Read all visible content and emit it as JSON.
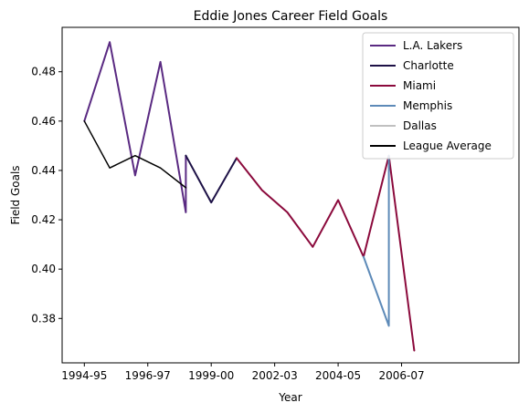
{
  "chart_data": {
    "type": "line",
    "title": "Eddie Jones  Career Field Goals",
    "xlabel": "Year",
    "ylabel": "Field Goals",
    "xlim": [
      -0.7,
      13.7
    ],
    "ylim": [
      0.362,
      0.498
    ],
    "x_ticks": [
      {
        "pos": 0,
        "label": "1994-95"
      },
      {
        "pos": 2,
        "label": "1996-97"
      },
      {
        "pos": 4,
        "label": "1999-00"
      },
      {
        "pos": 6,
        "label": "2002-03"
      },
      {
        "pos": 8,
        "label": "2004-05"
      },
      {
        "pos": 10,
        "label": "2006-07"
      }
    ],
    "y_ticks": [
      {
        "value": 0.38,
        "label": "0.38"
      },
      {
        "value": 0.4,
        "label": "0.40"
      },
      {
        "value": 0.42,
        "label": "0.42"
      },
      {
        "value": 0.44,
        "label": "0.44"
      },
      {
        "value": 0.46,
        "label": "0.46"
      },
      {
        "value": 0.48,
        "label": "0.48"
      }
    ],
    "legend_position": "top-right",
    "grid": false,
    "series": [
      {
        "name": "L.A. Lakers",
        "color": "#5a2a82",
        "points": [
          [
            0,
            0.46
          ],
          [
            0.8,
            0.492
          ],
          [
            1.6,
            0.438
          ],
          [
            2.4,
            0.484
          ],
          [
            3.2,
            0.423
          ],
          [
            3.2,
            0.446
          ]
        ]
      },
      {
        "name": "Charlotte",
        "color": "#1d1146",
        "points": [
          [
            3.2,
            0.446
          ],
          [
            4,
            0.427
          ],
          [
            4.8,
            0.445
          ]
        ]
      },
      {
        "name": "Miami",
        "color": "#8b0a3c",
        "points": [
          [
            4.8,
            0.445
          ],
          [
            5.6,
            0.432
          ],
          [
            6.4,
            0.423
          ],
          [
            7.2,
            0.409
          ],
          [
            8,
            0.428
          ],
          [
            8.8,
            0.405
          ],
          [
            9.6,
            0.446
          ],
          [
            10.4,
            0.367
          ]
        ]
      },
      {
        "name": "Memphis",
        "color": "#5d8ab8",
        "points": [
          [
            8.8,
            0.405
          ],
          [
            9.6,
            0.377
          ],
          [
            9.6,
            0.446
          ]
        ]
      },
      {
        "name": "Dallas",
        "color": "#c0c0c0",
        "points": []
      },
      {
        "name": "League Average",
        "color": "#000000",
        "points": [
          [
            0,
            0.46
          ],
          [
            0.8,
            0.441
          ],
          [
            1.6,
            0.446
          ],
          [
            2.4,
            0.441
          ],
          [
            3.2,
            0.433
          ]
        ]
      }
    ]
  }
}
